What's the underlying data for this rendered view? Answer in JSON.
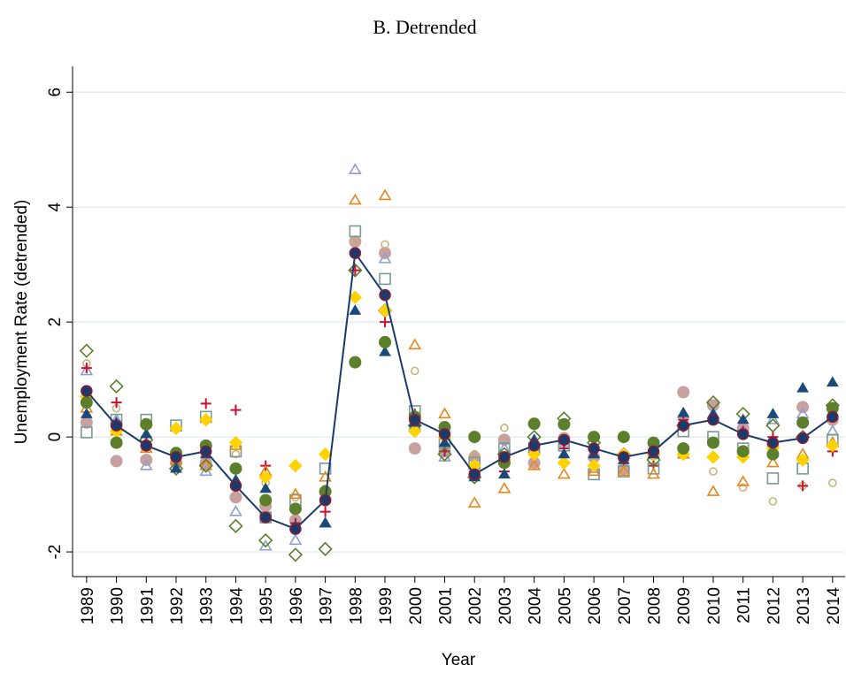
{
  "chart_data": {
    "type": "scatter",
    "title": "B. Detrended",
    "x_label": "Year",
    "y_label": "Unemployment Rate (detrended)",
    "x": [
      1989,
      1990,
      1991,
      1992,
      1993,
      1994,
      1995,
      1996,
      1997,
      1998,
      1999,
      2000,
      2001,
      2002,
      2003,
      2004,
      2005,
      2006,
      2007,
      2008,
      2009,
      2010,
      2011,
      2012,
      2013,
      2014
    ],
    "xlim": [
      1988.53,
      2014.42
    ],
    "xticks": [
      1989,
      1990,
      1991,
      1992,
      1993,
      1994,
      1995,
      1996,
      1997,
      1998,
      1999,
      2000,
      2001,
      2002,
      2003,
      2004,
      2005,
      2006,
      2007,
      2008,
      2009,
      2010,
      2011,
      2012,
      2013,
      2014
    ],
    "ylim": [
      -2.43,
      6.45
    ],
    "yticks": [
      -2,
      0,
      2,
      4,
      6
    ],
    "grid": true,
    "series": [
      {
        "color": "#c9a0a0",
        "marker": "circle",
        "filled": true,
        "values": [
          0.25,
          -0.42,
          -0.4,
          -0.45,
          -0.45,
          -1.05,
          -1.2,
          -1.45,
          -1.1,
          3.4,
          3.2,
          -0.2,
          -0.25,
          -0.35,
          -0.05,
          -0.45,
          -0.02,
          -0.35,
          -0.55,
          -0.3,
          0.78,
          0.55,
          0.15,
          -0.15,
          0.52,
          0.3
        ]
      },
      {
        "color": "#c8b47a",
        "marker": "circle",
        "filled": false,
        "values": [
          1.28,
          0.5,
          -0.1,
          -0.35,
          0.3,
          -0.3,
          -0.8,
          -1.05,
          -0.9,
          3.4,
          3.35,
          1.15,
          0.0,
          -0.3,
          0.16,
          -0.3,
          0.0,
          -0.5,
          -0.5,
          -0.3,
          0.3,
          -0.6,
          -0.88,
          -1.12,
          -0.85,
          -0.8
        ]
      },
      {
        "color": "#8da0cb",
        "marker": "triangle",
        "filled": false,
        "values": [
          1.15,
          0.3,
          -0.5,
          -0.4,
          -0.6,
          -1.3,
          -1.9,
          -1.8,
          -1.5,
          4.65,
          3.1,
          0.2,
          -0.35,
          -0.5,
          -0.2,
          -0.2,
          -0.1,
          -0.55,
          -0.3,
          -0.3,
          0.4,
          0.4,
          0.1,
          0.3,
          0.4,
          0.1
        ]
      },
      {
        "color": "#c8102e",
        "marker": "plus",
        "filled": false,
        "values": [
          1.2,
          0.6,
          0.0,
          -0.3,
          0.58,
          0.47,
          -0.5,
          -1.5,
          -1.3,
          2.9,
          2.0,
          0.4,
          -0.25,
          -0.6,
          -0.6,
          -0.3,
          -0.2,
          -0.2,
          -0.4,
          -0.5,
          0.3,
          0.3,
          0.1,
          0.0,
          -0.85,
          -0.25
        ]
      },
      {
        "color": "#7a9a94",
        "marker": "square",
        "filled": false,
        "values": [
          0.08,
          0.3,
          0.3,
          0.2,
          0.35,
          -0.25,
          -1.4,
          -1.1,
          -0.55,
          3.58,
          2.75,
          0.45,
          -0.1,
          -0.45,
          -0.2,
          -0.2,
          -0.15,
          -0.65,
          -0.6,
          -0.55,
          0.1,
          0.0,
          -0.2,
          -0.72,
          -0.55,
          -0.05
        ]
      },
      {
        "color": "#e8861a",
        "marker": "triangle",
        "filled": false,
        "values": [
          0.5,
          0.1,
          -0.2,
          -0.4,
          -0.5,
          -0.15,
          -0.6,
          -1.0,
          -0.7,
          4.12,
          4.2,
          1.6,
          0.4,
          -1.15,
          -0.9,
          -0.5,
          -0.65,
          -0.6,
          -0.6,
          -0.65,
          -0.3,
          -0.95,
          -0.78,
          -0.45,
          -0.3,
          -0.1
        ]
      },
      {
        "color": "#5b7f2a",
        "marker": "diamond",
        "filled": false,
        "values": [
          1.5,
          0.88,
          -0.05,
          -0.55,
          -0.5,
          -1.55,
          -1.8,
          -2.05,
          -1.95,
          2.9,
          2.2,
          0.2,
          -0.3,
          -0.7,
          -0.3,
          0.0,
          0.32,
          -0.1,
          -0.3,
          -0.4,
          0.2,
          0.6,
          0.4,
          0.2,
          0.0,
          0.55
        ]
      },
      {
        "color": "#ffd200",
        "marker": "diamond",
        "filled": true,
        "values": [
          0.7,
          0.1,
          0.2,
          0.15,
          0.3,
          -0.1,
          -0.7,
          -0.5,
          -0.3,
          2.43,
          2.2,
          0.1,
          0.0,
          -0.5,
          -0.4,
          -0.3,
          -0.45,
          -0.5,
          -0.3,
          -0.3,
          -0.3,
          -0.35,
          -0.35,
          -0.2,
          -0.4,
          -0.15
        ]
      },
      {
        "color": "#1a4a7a",
        "marker": "triangle",
        "filled": true,
        "values": [
          0.4,
          0.25,
          0.05,
          -0.55,
          -0.3,
          -0.75,
          -0.9,
          -1.55,
          -1.5,
          2.2,
          1.48,
          0.25,
          -0.1,
          -0.7,
          -0.65,
          -0.05,
          -0.3,
          -0.3,
          -0.4,
          -0.3,
          0.42,
          0.4,
          0.3,
          0.4,
          0.85,
          0.95
        ]
      },
      {
        "color": "#5b7f2a",
        "marker": "circle",
        "filled": true,
        "values": [
          0.6,
          -0.1,
          0.22,
          -0.28,
          -0.15,
          -0.55,
          -1.1,
          -1.25,
          -0.95,
          1.3,
          1.65,
          0.35,
          0.17,
          0.0,
          -0.45,
          0.23,
          0.22,
          0.0,
          0.0,
          -0.1,
          -0.2,
          -0.1,
          -0.25,
          -0.3,
          0.25,
          0.5
        ]
      },
      {
        "color": "#1a3a6a",
        "marker": "circle",
        "filled": true,
        "line": true,
        "values": [
          0.8,
          0.2,
          -0.15,
          -0.35,
          -0.25,
          -0.85,
          -1.4,
          -1.6,
          -1.1,
          3.2,
          2.47,
          0.3,
          0.05,
          -0.65,
          -0.35,
          -0.15,
          -0.05,
          -0.2,
          -0.35,
          -0.25,
          0.2,
          0.3,
          0.05,
          -0.1,
          -0.02,
          0.35
        ]
      }
    ]
  }
}
